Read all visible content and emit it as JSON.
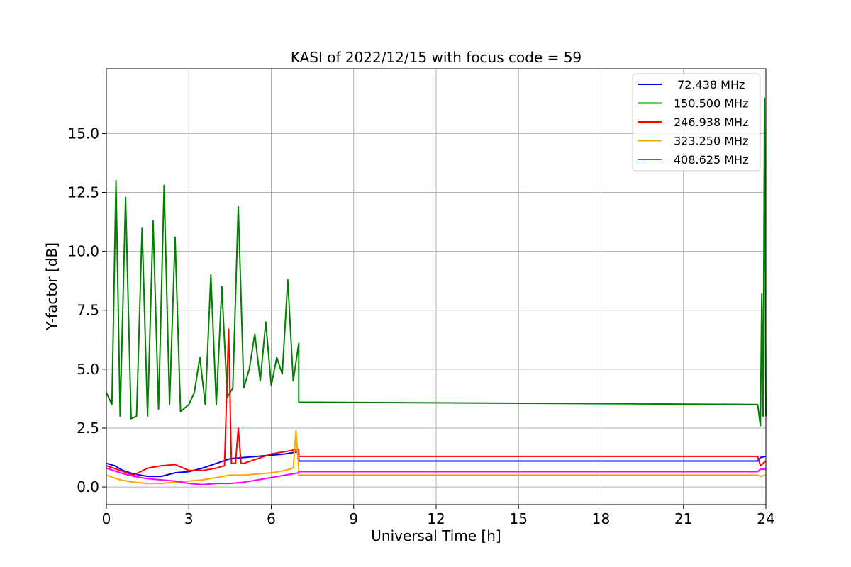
{
  "chart_data": {
    "type": "line",
    "title": "KASI of 2022/12/15 with focus code = 59",
    "xlabel": "Universal Time [h]",
    "ylabel": "Y-factor [dB]",
    "xlim": [
      0,
      24
    ],
    "ylim": [
      -0.75,
      17.75
    ],
    "xticks": [
      0,
      3,
      6,
      9,
      12,
      15,
      18,
      21,
      24
    ],
    "yticks": [
      0.0,
      2.5,
      5.0,
      7.5,
      10.0,
      12.5,
      15.0
    ],
    "xtick_labels": [
      "0",
      "3",
      "6",
      "9",
      "12",
      "15",
      "18",
      "21",
      "24"
    ],
    "ytick_labels": [
      "0.0",
      "2.5",
      "5.0",
      "7.5",
      "10.0",
      "12.5",
      "15.0"
    ],
    "grid": true,
    "legend_position": "top-right",
    "series": [
      {
        "name": " 72.438 MHz",
        "color": "#0000ff",
        "x": [
          0,
          0.3,
          0.6,
          1.0,
          1.5,
          2.0,
          2.5,
          3.0,
          3.5,
          4.0,
          4.5,
          5.0,
          5.5,
          6.0,
          6.5,
          7.0,
          7.0,
          23.7,
          23.8,
          24
        ],
        "y": [
          1.0,
          0.9,
          0.7,
          0.55,
          0.45,
          0.45,
          0.6,
          0.65,
          0.8,
          1.0,
          1.2,
          1.25,
          1.3,
          1.35,
          1.4,
          1.5,
          1.1,
          1.1,
          1.25,
          1.3
        ]
      },
      {
        "name": "150.500 MHz",
        "color": "#008000",
        "x": [
          0,
          0.2,
          0.35,
          0.5,
          0.7,
          0.9,
          1.1,
          1.3,
          1.5,
          1.7,
          1.9,
          2.1,
          2.3,
          2.5,
          2.7,
          3.0,
          3.2,
          3.4,
          3.6,
          3.8,
          4.0,
          4.2,
          4.4,
          4.6,
          4.8,
          5.0,
          5.2,
          5.4,
          5.6,
          5.8,
          6.0,
          6.2,
          6.4,
          6.6,
          6.8,
          7.0,
          7.0,
          23.7,
          23.8,
          23.85,
          23.9,
          23.95,
          24
        ],
        "y": [
          4.0,
          3.5,
          13.0,
          3.0,
          12.3,
          2.9,
          3.0,
          11.0,
          3.0,
          11.3,
          3.3,
          12.8,
          3.5,
          10.6,
          3.2,
          3.5,
          4.0,
          5.5,
          3.5,
          9.0,
          3.5,
          8.5,
          3.8,
          4.2,
          11.9,
          4.2,
          5.0,
          6.5,
          4.5,
          7.0,
          4.3,
          5.5,
          4.8,
          8.8,
          4.5,
          6.1,
          3.6,
          3.5,
          2.6,
          8.2,
          3.0,
          16.5,
          3.0
        ]
      },
      {
        "name": "246.938 MHz",
        "color": "#ff0000",
        "x": [
          0,
          0.5,
          1.0,
          1.5,
          2.0,
          2.5,
          3.0,
          3.5,
          4.0,
          4.3,
          4.45,
          4.55,
          4.7,
          4.8,
          4.9,
          5.0,
          5.5,
          6.0,
          6.5,
          7.0,
          7.0,
          23.7,
          23.8,
          24
        ],
        "y": [
          0.9,
          0.7,
          0.5,
          0.8,
          0.9,
          0.95,
          0.7,
          0.7,
          0.8,
          0.9,
          6.7,
          1.0,
          1.0,
          2.5,
          1.0,
          1.0,
          1.2,
          1.4,
          1.5,
          1.6,
          1.3,
          1.3,
          0.9,
          1.1
        ]
      },
      {
        "name": "323.250 MHz",
        "color": "#ffa500",
        "x": [
          0,
          0.5,
          1.0,
          1.5,
          2.0,
          2.5,
          3.0,
          3.5,
          4.0,
          4.5,
          5.0,
          5.5,
          6.0,
          6.5,
          6.8,
          6.9,
          7.0,
          7.0,
          23.7,
          23.8,
          24
        ],
        "y": [
          0.5,
          0.3,
          0.2,
          0.15,
          0.15,
          0.2,
          0.25,
          0.3,
          0.4,
          0.5,
          0.5,
          0.55,
          0.6,
          0.7,
          0.8,
          2.4,
          0.7,
          0.5,
          0.5,
          0.45,
          0.5
        ]
      },
      {
        "name": "408.625 MHz",
        "color": "#ff00ff",
        "x": [
          0,
          0.5,
          1.0,
          1.5,
          2.0,
          2.5,
          3.0,
          3.5,
          4.0,
          4.5,
          5.0,
          5.5,
          6.0,
          6.5,
          7.0,
          7.0,
          23.7,
          23.8,
          24
        ],
        "y": [
          0.8,
          0.6,
          0.45,
          0.35,
          0.3,
          0.25,
          0.15,
          0.1,
          0.15,
          0.15,
          0.2,
          0.3,
          0.4,
          0.5,
          0.6,
          0.65,
          0.65,
          0.75,
          0.75
        ]
      }
    ]
  }
}
